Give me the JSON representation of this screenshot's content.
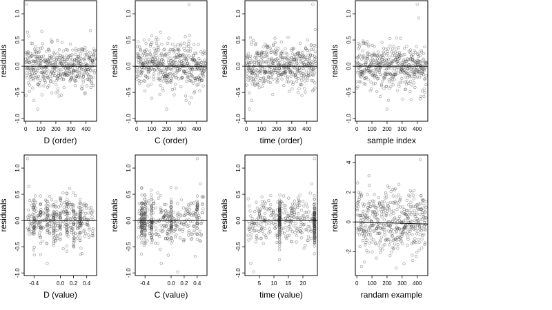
{
  "chart_data": [
    {
      "type": "scatter",
      "xlabel": "D (order)",
      "ylabel": "residuals",
      "xlim": [
        -10,
        470
      ],
      "ylim": [
        -1.05,
        1.25
      ],
      "xticks": [
        0,
        100,
        200,
        300,
        400
      ],
      "xtick_labels": [
        "0",
        "100",
        "200",
        "300",
        "400"
      ],
      "yticks": [
        -1.0,
        -0.5,
        0.0,
        0.5,
        1.0
      ],
      "ytick_labels": [
        "-1.0",
        "-0.5",
        "0.0",
        "0.5",
        "1.0"
      ],
      "reference_line": 0,
      "n_points": 460,
      "x_range": [
        0,
        460
      ],
      "y_spread": 0.22,
      "highlights": [
        {
          "x": 5,
          "y": 1.18
        },
        {
          "x": 12,
          "y": 0.65
        },
        {
          "x": 55,
          "y": -0.65
        },
        {
          "x": 80,
          "y": -0.82
        },
        {
          "x": 430,
          "y": 0.68
        }
      ],
      "pattern": "order"
    },
    {
      "type": "scatter",
      "xlabel": "C (order)",
      "ylabel": "residuals",
      "xlim": [
        -10,
        470
      ],
      "ylim": [
        -1.05,
        1.25
      ],
      "xticks": [
        0,
        100,
        200,
        300,
        400
      ],
      "xtick_labels": [
        "0",
        "100",
        "200",
        "300",
        "400"
      ],
      "yticks": [
        -1.0,
        -0.5,
        0.0,
        0.5,
        1.0
      ],
      "ytick_labels": [
        "-1.0",
        "-0.5",
        "0.0",
        "0.5",
        "1.0"
      ],
      "reference_line": 0,
      "n_points": 460,
      "x_range": [
        0,
        460
      ],
      "y_spread": 0.22,
      "highlights": [
        {
          "x": 350,
          "y": 1.18
        },
        {
          "x": 200,
          "y": -0.82
        },
        {
          "x": 330,
          "y": -0.65
        },
        {
          "x": 160,
          "y": 0.65
        }
      ],
      "pattern": "order"
    },
    {
      "type": "scatter",
      "xlabel": "time (order)",
      "ylabel": "residuals",
      "xlim": [
        -10,
        470
      ],
      "ylim": [
        -1.05,
        1.25
      ],
      "xticks": [
        0,
        100,
        200,
        300,
        400
      ],
      "xtick_labels": [
        "0",
        "100",
        "200",
        "300",
        "400"
      ],
      "yticks": [
        -1.0,
        -0.5,
        0.0,
        0.5,
        1.0
      ],
      "ytick_labels": [
        "-1.0",
        "-0.5",
        "0.0",
        "0.5",
        "1.0"
      ],
      "reference_line": 0,
      "n_points": 460,
      "x_range": [
        0,
        460
      ],
      "y_spread": 0.22,
      "highlights": [
        {
          "x": 440,
          "y": 1.18
        },
        {
          "x": 20,
          "y": -0.82
        },
        {
          "x": 455,
          "y": 0.7
        },
        {
          "x": 35,
          "y": -0.65
        }
      ],
      "pattern": "order"
    },
    {
      "type": "scatter",
      "xlabel": "sample index",
      "ylabel": "residuals",
      "xlim": [
        -10,
        470
      ],
      "ylim": [
        -1.05,
        1.25
      ],
      "xticks": [
        0,
        100,
        200,
        300,
        400
      ],
      "xtick_labels": [
        "0",
        "100",
        "200",
        "300",
        "400"
      ],
      "yticks": [
        -1.0,
        -0.5,
        0.0,
        0.5,
        1.0
      ],
      "ytick_labels": [
        "-1.0",
        "-0.5",
        "0.0",
        "0.5",
        "1.0"
      ],
      "reference_line": 0,
      "n_points": 460,
      "x_range": [
        0,
        460
      ],
      "y_spread": 0.22,
      "highlights": [
        {
          "x": 400,
          "y": 1.18
        },
        {
          "x": 410,
          "y": 0.92
        },
        {
          "x": 200,
          "y": -0.82
        },
        {
          "x": 210,
          "y": -0.65
        }
      ],
      "pattern": "order"
    },
    {
      "type": "scatter",
      "xlabel": "D (value)",
      "ylabel": "residuals",
      "xlim": [
        -0.55,
        0.55
      ],
      "ylim": [
        -1.05,
        1.25
      ],
      "xticks": [
        -0.4,
        0.0,
        0.2,
        0.4
      ],
      "xtick_labels": [
        "-0.4",
        "0.0",
        "0.2",
        "0.4"
      ],
      "yticks": [
        -1.0,
        -0.5,
        0.0,
        0.5,
        1.0
      ],
      "ytick_labels": [
        "-1.0",
        "-0.5",
        "0.0",
        "0.5",
        "1.0"
      ],
      "reference_line": 0,
      "n_points": 460,
      "x_range": [
        -0.5,
        0.5
      ],
      "y_spread": 0.22,
      "highlights": [
        {
          "x": -0.5,
          "y": 1.18
        },
        {
          "x": -0.48,
          "y": 0.65
        },
        {
          "x": -0.3,
          "y": -0.65
        },
        {
          "x": -0.2,
          "y": -0.82
        }
      ],
      "pattern": "value",
      "x_columns": [
        -0.4,
        -0.3,
        -0.2,
        -0.1,
        0.0,
        0.1,
        0.2,
        0.3
      ]
    },
    {
      "type": "scatter",
      "xlabel": "C (value)",
      "ylabel": "residuals",
      "xlim": [
        -0.55,
        0.55
      ],
      "ylim": [
        -1.05,
        1.25
      ],
      "xticks": [
        -0.4,
        0.0,
        0.2,
        0.4
      ],
      "xtick_labels": [
        "-0.4",
        "0.0",
        "0.2",
        "0.4"
      ],
      "yticks": [
        -1.0,
        -0.5,
        0.0,
        0.5,
        1.0
      ],
      "ytick_labels": [
        "-1.0",
        "-0.5",
        "0.0",
        "0.5",
        "1.0"
      ],
      "reference_line": 0,
      "n_points": 460,
      "x_range": [
        -0.5,
        0.5
      ],
      "y_spread": 0.22,
      "highlights": [
        {
          "x": 0.4,
          "y": 1.18
        },
        {
          "x": -0.15,
          "y": -0.82
        },
        {
          "x": 0.1,
          "y": -0.98
        },
        {
          "x": 0.45,
          "y": 0.7
        }
      ],
      "pattern": "value",
      "x_columns": [
        -0.45,
        -0.4,
        -0.3,
        0.0,
        0.4
      ]
    },
    {
      "type": "scatter",
      "xlabel": "time (value)",
      "ylabel": "residuals",
      "xlim": [
        0,
        25
      ],
      "ylim": [
        -1.05,
        1.25
      ],
      "xticks": [
        5,
        10,
        15,
        20
      ],
      "xtick_labels": [
        "5",
        "10",
        "15",
        "20"
      ],
      "yticks": [
        -1.0,
        -0.5,
        0.0,
        0.5,
        1.0
      ],
      "ytick_labels": [
        "-1.0",
        "-0.5",
        "0.0",
        "0.5",
        "1.0"
      ],
      "reference_line": 0,
      "n_points": 460,
      "x_range": [
        1,
        24
      ],
      "y_spread": 0.22,
      "highlights": [
        {
          "x": 24,
          "y": 1.18
        },
        {
          "x": 2,
          "y": -0.82
        },
        {
          "x": 3,
          "y": -0.98
        },
        {
          "x": 23,
          "y": 0.7
        }
      ],
      "pattern": "value",
      "x_columns": [
        12,
        24
      ]
    },
    {
      "type": "scatter",
      "xlabel": "randam example",
      "ylabel": "residuals",
      "xlim": [
        -10,
        470
      ],
      "ylim": [
        -3.6,
        4.5
      ],
      "xticks": [
        0,
        100,
        200,
        300,
        400
      ],
      "xtick_labels": [
        "0",
        "100",
        "200",
        "300",
        "400"
      ],
      "yticks": [
        -2,
        0,
        2,
        4
      ],
      "ytick_labels": [
        "-2",
        "0",
        "2",
        "4"
      ],
      "reference_line": 0,
      "reference_line_slope": -0.0003,
      "n_points": 460,
      "x_range": [
        0,
        460
      ],
      "y_spread": 1.0,
      "highlights": [
        {
          "x": 420,
          "y": 4.2
        },
        {
          "x": 80,
          "y": 3.1
        },
        {
          "x": 30,
          "y": -3.0
        },
        {
          "x": 260,
          "y": -3.1
        }
      ],
      "pattern": "order"
    }
  ]
}
